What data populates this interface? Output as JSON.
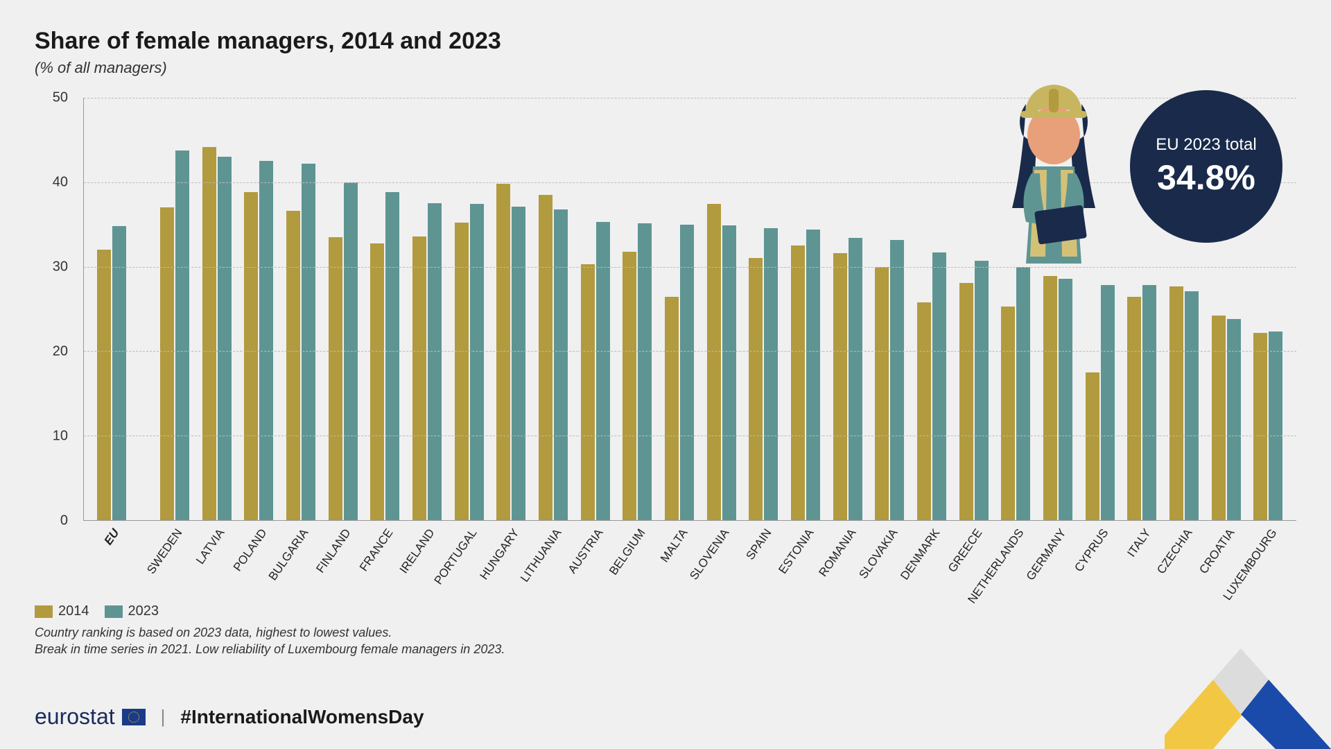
{
  "title": "Share of female managers, 2014 and 2023",
  "subtitle": "(% of all managers)",
  "chart": {
    "type": "bar",
    "ylim": [
      0,
      50
    ],
    "yticks": [
      0,
      10,
      20,
      30,
      40,
      50
    ],
    "grid_color": "#bbbbbb",
    "background_color": "#f0f0f0",
    "series": [
      {
        "name": "2014",
        "color": "#b29a3e"
      },
      {
        "name": "2023",
        "color": "#5e9593"
      }
    ],
    "categories": [
      {
        "label": "EU",
        "bold": true,
        "v2014": 32.0,
        "v2023": 34.8,
        "gap_after": true
      },
      {
        "label": "SWEDEN",
        "v2014": 37.0,
        "v2023": 43.8
      },
      {
        "label": "LATVIA",
        "v2014": 44.2,
        "v2023": 43.0
      },
      {
        "label": "POLAND",
        "v2014": 38.8,
        "v2023": 42.5
      },
      {
        "label": "BULGARIA",
        "v2014": 36.6,
        "v2023": 42.2
      },
      {
        "label": "FINLAND",
        "v2014": 33.5,
        "v2023": 40.0
      },
      {
        "label": "FRANCE",
        "v2014": 32.8,
        "v2023": 38.8
      },
      {
        "label": "IRELAND",
        "v2014": 33.6,
        "v2023": 37.5
      },
      {
        "label": "PORTUGAL",
        "v2014": 35.2,
        "v2023": 37.4
      },
      {
        "label": "HUNGARY",
        "v2014": 39.8,
        "v2023": 37.1
      },
      {
        "label": "LITHUANIA",
        "v2014": 38.5,
        "v2023": 36.8
      },
      {
        "label": "AUSTRIA",
        "v2014": 30.3,
        "v2023": 35.3
      },
      {
        "label": "BELGIUM",
        "v2014": 31.8,
        "v2023": 35.1
      },
      {
        "label": "MALTA",
        "v2014": 26.4,
        "v2023": 35.0
      },
      {
        "label": "SLOVENIA",
        "v2014": 37.4,
        "v2023": 34.9
      },
      {
        "label": "SPAIN",
        "v2014": 31.0,
        "v2023": 34.6
      },
      {
        "label": "ESTONIA",
        "v2014": 32.5,
        "v2023": 34.4
      },
      {
        "label": "ROMANIA",
        "v2014": 31.6,
        "v2023": 33.4
      },
      {
        "label": "SLOVAKIA",
        "v2014": 30.0,
        "v2023": 33.2
      },
      {
        "label": "DENMARK",
        "v2014": 25.8,
        "v2023": 31.7
      },
      {
        "label": "GREECE",
        "v2014": 28.1,
        "v2023": 30.7
      },
      {
        "label": "NETHERLANDS",
        "v2014": 25.3,
        "v2023": 30.0
      },
      {
        "label": "GERMANY",
        "v2014": 28.9,
        "v2023": 28.6
      },
      {
        "label": "CYPRUS",
        "v2014": 17.5,
        "v2023": 27.8
      },
      {
        "label": "ITALY",
        "v2014": 26.4,
        "v2023": 27.8
      },
      {
        "label": "CZECHIA",
        "v2014": 27.7,
        "v2023": 27.1
      },
      {
        "label": "CROATIA",
        "v2014": 24.2,
        "v2023": 23.8
      },
      {
        "label": "LUXEMBOURG",
        "v2014": 22.2,
        "v2023": 22.3
      }
    ]
  },
  "legend": {
    "s1": "2014",
    "s2": "2023"
  },
  "notes": {
    "line1": "Country ranking is based on 2023 data, highest to lowest values.",
    "line2": "Break in time series in 2021. Low reliability of Luxembourg female managers in 2023."
  },
  "callout": {
    "label": "EU 2023 total",
    "value": "34.8%",
    "bg": "#1a2a4a"
  },
  "footer": {
    "brand": "eurostat",
    "hashtag": "#InternationalWomensDay"
  },
  "swoosh": {
    "yellow": "#f2c744",
    "blue": "#1a4aaa",
    "mid": "#dcdcdc"
  },
  "illustration": {
    "hardhat": "#c8b560",
    "hair": "#1a2a4a",
    "skin": "#e8a07a",
    "shirt": "#5e9593",
    "vest": "#d4c178",
    "tablet": "#1a2a4a"
  }
}
